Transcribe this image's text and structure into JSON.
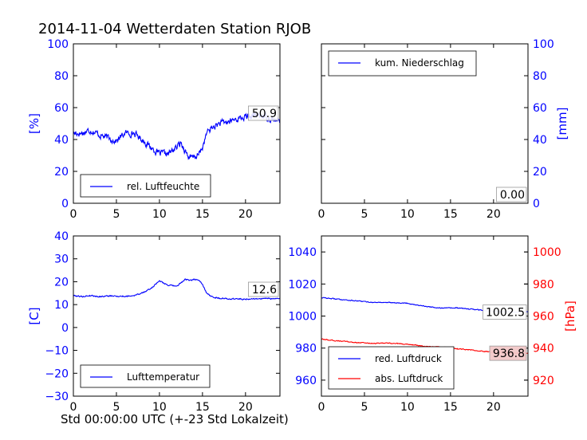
{
  "figure": {
    "title": "2014-11-04 Wetterdaten Station RJOB",
    "x_caption": "Std 00:00:00 UTC (+-23 Std Lokalzeit)"
  },
  "colors": {
    "blue": "#0000ff",
    "red": "#ff0000",
    "axis": "#000000"
  },
  "chart_data": [
    {
      "type": "line",
      "panel": "top-left",
      "xlim": [
        0,
        24
      ],
      "xticks": [
        0,
        5,
        10,
        15,
        20
      ],
      "ylim": [
        0,
        100
      ],
      "yticks": [
        0,
        20,
        40,
        60,
        80,
        100
      ],
      "ylabel": "[%]",
      "ylabel_side": "left",
      "ytick_color": "#0000ff",
      "legend_position": "lower-left",
      "series": [
        {
          "name": "rel. Luftfeuchte",
          "color": "#0000ff",
          "axis": "left",
          "noise": 2.2,
          "x": [
            0,
            1,
            2,
            3,
            4,
            5,
            6,
            7,
            8,
            9,
            10,
            11,
            12,
            12.5,
            13,
            13.5,
            14,
            14.5,
            15,
            15.5,
            16,
            17,
            18,
            19,
            20,
            21,
            22,
            23,
            24
          ],
          "y": [
            44,
            44,
            46,
            43,
            41,
            39,
            44,
            44,
            40,
            35,
            31,
            31,
            35,
            38,
            33,
            28,
            29,
            30,
            35,
            44,
            47,
            50,
            51,
            53,
            54,
            55,
            55,
            53,
            51
          ]
        }
      ],
      "annotations": [
        {
          "text": "50.9"
        }
      ]
    },
    {
      "type": "line",
      "panel": "top-right",
      "xlim": [
        0,
        24
      ],
      "xticks": [
        0,
        5,
        10,
        15,
        20
      ],
      "ylim": [
        0,
        100
      ],
      "yticks": [
        0,
        20,
        40,
        60,
        80,
        100
      ],
      "ylabel": "[mm]",
      "ylabel_side": "right",
      "ytick_color": "#0000ff",
      "legend_position": "upper-left",
      "series": [
        {
          "name": "kum. Niederschlag",
          "color": "#0000ff",
          "axis": "right",
          "noise": 0,
          "x": [
            0,
            24
          ],
          "y": [
            0,
            0
          ]
        }
      ],
      "annotations": [
        {
          "text": "0.00"
        }
      ]
    },
    {
      "type": "line",
      "panel": "bottom-left",
      "xlim": [
        0,
        24
      ],
      "xticks": [
        0,
        5,
        10,
        15,
        20
      ],
      "ylim": [
        -30,
        40
      ],
      "yticks": [
        -30,
        -20,
        -10,
        0,
        10,
        20,
        30,
        40
      ],
      "ylabel": "[C]",
      "ylabel_side": "left",
      "ytick_color": "#0000ff",
      "legend_position": "lower-left",
      "series": [
        {
          "name": "Lufttemperatur",
          "color": "#0000ff",
          "axis": "left",
          "noise": 0.3,
          "x": [
            0,
            1,
            2,
            3,
            4,
            5,
            6,
            7,
            8,
            9,
            10,
            10.5,
            11,
            12,
            13,
            13.5,
            14,
            14.5,
            15,
            15.5,
            16,
            17,
            18,
            19,
            20,
            21,
            22,
            23,
            24
          ],
          "y": [
            14,
            13.5,
            14,
            13.5,
            13.8,
            13.7,
            13.6,
            14,
            15,
            17,
            20.5,
            19.5,
            18.5,
            18,
            21,
            20.5,
            21,
            21,
            19,
            15,
            13.5,
            12.8,
            12.5,
            12.5,
            12.4,
            12.5,
            12.6,
            12.6,
            12.6
          ]
        }
      ],
      "annotations": [
        {
          "text": "12.6"
        }
      ]
    },
    {
      "type": "line",
      "panel": "bottom-right",
      "xlim": [
        0,
        24
      ],
      "xticks": [
        0,
        5,
        10,
        15,
        20
      ],
      "ylim": [
        950,
        1050
      ],
      "yticks": [
        960,
        980,
        1000,
        1020,
        1040
      ],
      "ylim_right": [
        910,
        1010
      ],
      "yticks_right": [
        920,
        940,
        960,
        980,
        1000
      ],
      "ylabel": "",
      "ylabel_right": "[hPa]",
      "ytick_color": "#0000ff",
      "ytick_color_right": "#ff0000",
      "legend_position": "lower-left",
      "series": [
        {
          "name": "red. Luftdruck",
          "color": "#0000ff",
          "axis": "left",
          "noise": 0.3,
          "x": [
            0,
            2,
            4,
            6,
            8,
            10,
            12,
            14,
            16,
            18,
            20,
            22,
            24
          ],
          "y": [
            1011.5,
            1010.5,
            1009.5,
            1008.5,
            1008.5,
            1008,
            1006,
            1005,
            1005,
            1004,
            1003,
            1002.5,
            1002.5
          ]
        },
        {
          "name": "abs. Luftdruck",
          "color": "#ff0000",
          "axis": "right",
          "noise": 0.3,
          "x": [
            0,
            2,
            4,
            6,
            8,
            10,
            12,
            14,
            16,
            18,
            20,
            22,
            24
          ],
          "y": [
            945.5,
            944.5,
            943.5,
            943,
            943,
            942.5,
            941,
            940.5,
            939.5,
            938.5,
            937.5,
            936.8,
            936.8
          ]
        }
      ],
      "annotations": [
        {
          "text": "1002.5",
          "axis": "left",
          "box": "#ffffff",
          "y": 1002.5
        },
        {
          "text": "936.8",
          "axis": "right",
          "box": "#f2c8c8",
          "y": 936.8
        }
      ]
    }
  ]
}
